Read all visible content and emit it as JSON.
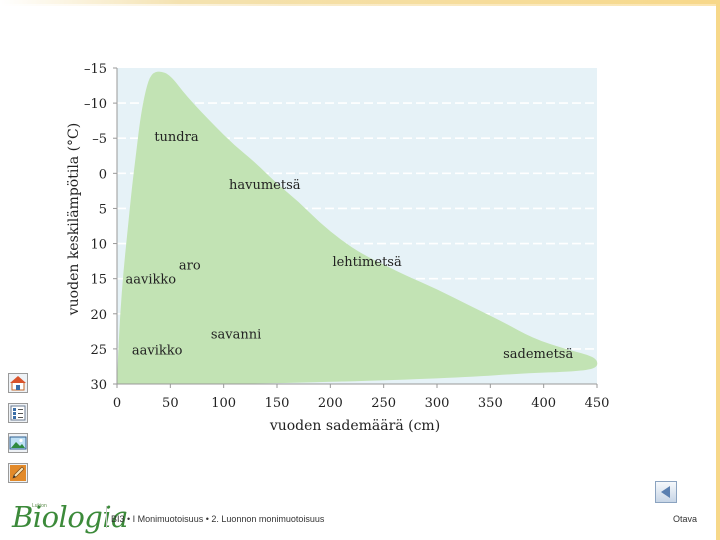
{
  "chart_data": {
    "type": "area",
    "xlabel": "vuoden sademäärä (cm)",
    "ylabel": "vuoden keskilämpötila (°C)",
    "xlim": [
      0,
      450
    ],
    "ylim": [
      -15,
      30
    ],
    "y_inverted": true,
    "grid": "dashed horizontal",
    "x_ticks": [
      "0",
      "50",
      "100",
      "150",
      "200",
      "250",
      "300",
      "350",
      "400",
      "450"
    ],
    "y_ticks": [
      "–15",
      "–10",
      "–5",
      "0",
      "5",
      "10",
      "15",
      "20",
      "25",
      "30"
    ],
    "x_tick_values": [
      0,
      50,
      100,
      150,
      200,
      250,
      300,
      350,
      400,
      450
    ],
    "y_tick_values": [
      -15,
      -10,
      -5,
      0,
      5,
      10,
      15,
      20,
      25,
      30
    ],
    "region_outline": [
      [
        0,
        30
      ],
      [
        1,
        26
      ],
      [
        3,
        20
      ],
      [
        6,
        14
      ],
      [
        10,
        8
      ],
      [
        14,
        2
      ],
      [
        18,
        -3
      ],
      [
        22,
        -8
      ],
      [
        27,
        -12
      ],
      [
        32,
        -14.2
      ],
      [
        40,
        -14.6
      ],
      [
        50,
        -14
      ],
      [
        65,
        -11
      ],
      [
        90,
        -7
      ],
      [
        110,
        -4
      ],
      [
        130,
        -1.5
      ],
      [
        150,
        1.5
      ],
      [
        170,
        4
      ],
      [
        190,
        7
      ],
      [
        210,
        9.5
      ],
      [
        230,
        11.5
      ],
      [
        250,
        13
      ],
      [
        270,
        14.5
      ],
      [
        300,
        16.5
      ],
      [
        330,
        18.8
      ],
      [
        360,
        21
      ],
      [
        390,
        23.5
      ],
      [
        420,
        25
      ],
      [
        445,
        26
      ],
      [
        451,
        26.8
      ],
      [
        449,
        27.8
      ],
      [
        430,
        28.2
      ],
      [
        380,
        28.5
      ],
      [
        330,
        29
      ],
      [
        250,
        29.5
      ],
      [
        120,
        30
      ],
      [
        0,
        30
      ]
    ],
    "biome_labels": [
      {
        "text": "tundra",
        "x": 35,
        "y": -5.3
      },
      {
        "text": "havumetsä",
        "x": 105,
        "y": 1.5
      },
      {
        "text": "lehtimetsä",
        "x": 202,
        "y": 12.5
      },
      {
        "text": "aro",
        "x": 58,
        "y": 13
      },
      {
        "text": "aavikko",
        "x": 8,
        "y": 15
      },
      {
        "text": "savanni",
        "x": 88,
        "y": 22.8
      },
      {
        "text": "aavikko",
        "x": 14,
        "y": 25.1
      },
      {
        "text": "sademetsä",
        "x": 362,
        "y": 25.6
      }
    ],
    "colors": {
      "plot_bg": "#e6f2f7",
      "region": "#c2e3b4",
      "grid": "#ffffff",
      "axis": "#999999",
      "text": "#222222"
    }
  },
  "sidebar": {
    "icons": [
      {
        "name": "home-icon"
      },
      {
        "name": "list-icon"
      },
      {
        "name": "image-icon"
      },
      {
        "name": "pencil-icon"
      }
    ]
  },
  "footer": {
    "logo": "Biologia",
    "logo_small": "Lukion",
    "breadcrumb": "BI3 • I Monimuotoisuus • 2. Luonnon monimuotoisuus",
    "publisher": "Otava"
  }
}
